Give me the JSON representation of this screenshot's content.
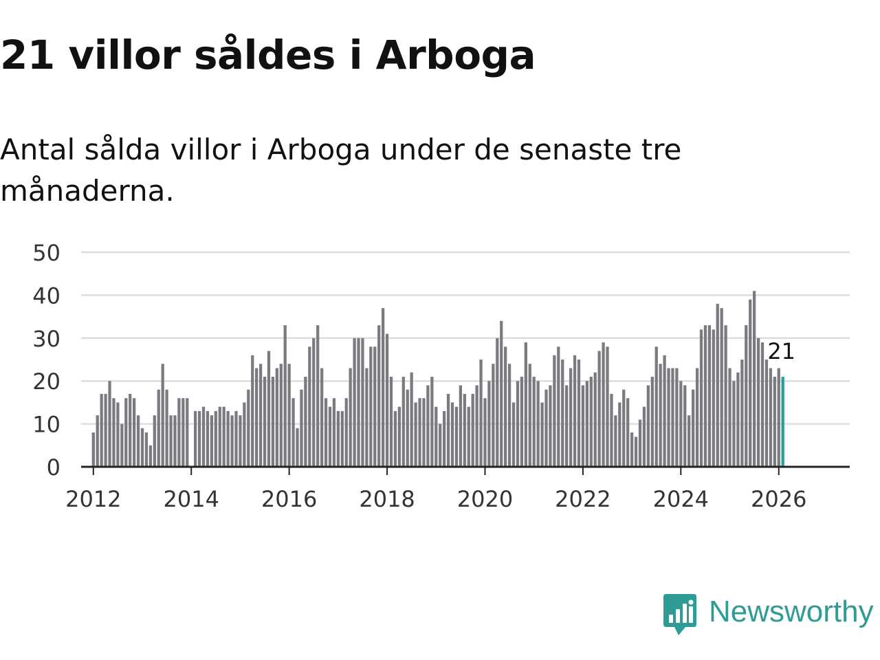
{
  "header": {
    "title": "21 villor såldes i Arboga",
    "subtitle": "Antal sålda villor i Arboga under de senaste tre månaderna."
  },
  "brand": {
    "name": "Newsworthy"
  },
  "colors": {
    "bar": "#7b7a80",
    "highlight": "#2a9d94",
    "grid": "#dddddd",
    "axis": "#222222",
    "text": "#111111",
    "tick_text": "#333333",
    "brand": "#2e9c94"
  },
  "chart_data": {
    "type": "bar",
    "title": "21 villor såldes i Arboga",
    "subtitle": "Antal sålda villor i Arboga under de senaste tre månaderna.",
    "xlabel": "",
    "ylabel": "",
    "ylim": [
      0,
      50
    ],
    "xlim": [
      2011.75,
      2027.45
    ],
    "grid": true,
    "y_ticks": [
      0,
      10,
      20,
      30,
      40,
      50
    ],
    "x_ticks": [
      2012,
      2014,
      2016,
      2018,
      2020,
      2022,
      2024,
      2026
    ],
    "start": {
      "year": 2012,
      "month": 1
    },
    "frequency": "monthly",
    "highlight_label": "21",
    "values": [
      8,
      12,
      17,
      17,
      20,
      16,
      15,
      10,
      16,
      17,
      16,
      12,
      9,
      8,
      5,
      12,
      18,
      24,
      18,
      12,
      12,
      16,
      16,
      16,
      null,
      13,
      13,
      14,
      13,
      12,
      13,
      14,
      14,
      13,
      12,
      13,
      12,
      15,
      18,
      26,
      23,
      24,
      21,
      27,
      21,
      23,
      24,
      33,
      24,
      16,
      9,
      18,
      21,
      28,
      30,
      33,
      23,
      16,
      14,
      16,
      13,
      13,
      16,
      23,
      30,
      30,
      30,
      23,
      28,
      28,
      33,
      37,
      31,
      21,
      13,
      14,
      21,
      18,
      22,
      15,
      16,
      16,
      19,
      21,
      14,
      10,
      13,
      17,
      15,
      14,
      19,
      17,
      14,
      17,
      19,
      25,
      16,
      20,
      24,
      30,
      34,
      28,
      24,
      15,
      20,
      21,
      29,
      24,
      21,
      20,
      15,
      18,
      19,
      26,
      28,
      25,
      19,
      23,
      26,
      25,
      19,
      20,
      21,
      22,
      27,
      29,
      28,
      17,
      12,
      15,
      18,
      16,
      8,
      7,
      11,
      14,
      19,
      21,
      28,
      24,
      26,
      23,
      23,
      23,
      20,
      19,
      12,
      18,
      23,
      32,
      33,
      33,
      32,
      38,
      37,
      33,
      23,
      20,
      22,
      25,
      33,
      39,
      41,
      30,
      29,
      25,
      23,
      21,
      23,
      21
    ]
  }
}
